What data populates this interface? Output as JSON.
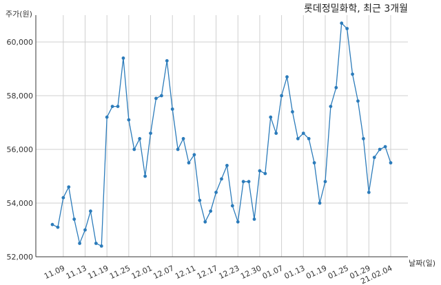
{
  "chart_data": {
    "type": "line",
    "title": "롯데정밀화학, 최근 3개월",
    "ylabel": "주가(원)",
    "xlabel": "날짜(일)",
    "ylim": [
      52000,
      61000
    ],
    "y_ticks": [
      52000,
      54000,
      56000,
      58000,
      60000
    ],
    "y_tick_labels": [
      "52,000",
      "54,000",
      "56,000",
      "58,000",
      "60,000"
    ],
    "x_tick_labels": [
      "11.09",
      "11.13",
      "11.19",
      "11.25",
      "12.01",
      "12.07",
      "12.11",
      "12.17",
      "12.23",
      "12.30",
      "01.07",
      "01.13",
      "01.19",
      "01.25",
      "01.29",
      "21.02.04"
    ],
    "grid": true,
    "series_color": "#2b7bba",
    "series": [
      {
        "values": [
          53200,
          53100,
          54200,
          54600,
          53400,
          52500,
          53000,
          53700,
          52500,
          52400,
          57200,
          57600,
          57600,
          59400,
          57100,
          56000,
          56400,
          55000,
          56600,
          57900,
          58000,
          59300,
          57500,
          56000,
          56400,
          55500,
          55800,
          54100,
          53300,
          53700,
          54400,
          54900,
          55400,
          53900,
          53300,
          54800,
          54800,
          53400,
          55200,
          55100,
          57200,
          56600,
          58000,
          58700,
          57400,
          56400,
          56600,
          56400,
          55500,
          54000,
          54800,
          57600,
          58300,
          60700,
          60500,
          58800,
          57800,
          56400,
          54400,
          55700,
          56000,
          56100,
          55500
        ]
      }
    ]
  }
}
